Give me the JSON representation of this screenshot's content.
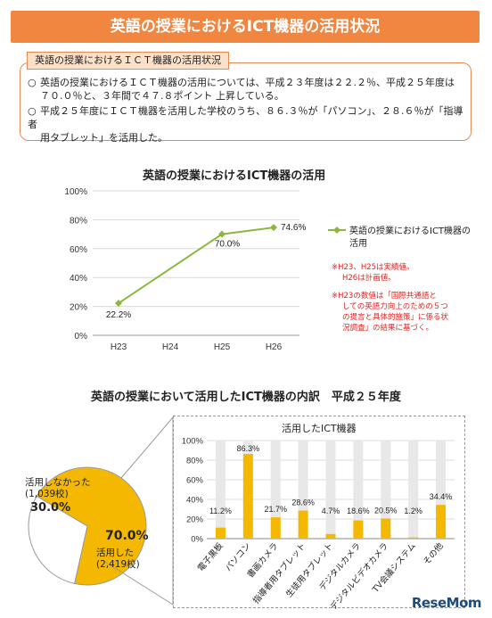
{
  "banner_title": "英語の授業におけるICT機器の活用状況",
  "summary": {
    "tab_label": "英語の授業におけるＩＣＴ機器の活用状況",
    "bullet_mark": "○",
    "lines": [
      "英語の授業におけるＩＣＴ機器の活用については、平成２３年度は２２.２％、平成２５年度は",
      "７０.０％と、３年間で４７.８ポイント 上昇している。",
      "平成２５年度にＩＣＴ機器を活用した学校のうち、８６.３％が「パソコン」、２８.６％が「指導者",
      "用タブレット」を活用した。"
    ]
  },
  "notes": {
    "n1": "※H23、H25は実績値。",
    "n2": "H26は計画値。",
    "n3_lines": [
      "※H23の数値は「国際共通語と",
      "しての英語力向上のための５つ",
      "の提言と具体的施策」に係る状",
      "況調査」の結果に基づく。"
    ]
  },
  "pie_title": "英語の授業において活用したICT機器の内訳　平成２５年度",
  "pie_labels": {
    "not_used_name": "活用しなかった",
    "not_used_count": "(1,039校)",
    "not_used_pct": "30.0%",
    "used_pct": "70.0%",
    "used_name": "活用した",
    "used_count": "(2,419校)"
  },
  "logo_text": "ReseMom",
  "chart_data": [
    {
      "type": "line",
      "title": "英語の授業におけるICT機器の活用",
      "categories": [
        "H23",
        "H24",
        "H25",
        "H26"
      ],
      "series": [
        {
          "name": "英語の授業におけるICT機器の活用",
          "values": [
            22.2,
            null,
            70.0,
            74.6
          ],
          "color": "#8ab83c"
        }
      ],
      "data_labels": [
        "22.2%",
        "",
        "70.0%",
        "74.6%"
      ],
      "yticks": [
        "0%",
        "20%",
        "40%",
        "60%",
        "80%",
        "100%"
      ],
      "ylim": [
        0,
        100
      ],
      "grid": true,
      "legend": "right"
    },
    {
      "type": "pie",
      "labels": [
        "活用した",
        "活用しなかった"
      ],
      "values": [
        70.0,
        30.0
      ],
      "colors": [
        "#f5b800",
        "#ffffff"
      ]
    },
    {
      "type": "bar",
      "title": "活用したICT機器",
      "categories": [
        "電子黒板",
        "パソコン",
        "書画カメラ",
        "指導者用タブレット",
        "生徒用タブレット",
        "デジタルカメラ",
        "デジタルビデオカメラ",
        "TV会議システム",
        "その他"
      ],
      "values": [
        11.2,
        86.3,
        21.7,
        28.6,
        4.7,
        18.6,
        20.5,
        1.2,
        34.4
      ],
      "data_labels": [
        "11.2%",
        "86.3%",
        "21.7%",
        "28.6%",
        "4.7%",
        "18.6%",
        "20.5%",
        "1.2%",
        "34.4%"
      ],
      "yticks": [
        "0%",
        "20%",
        "40%",
        "60%",
        "80%",
        "100%"
      ],
      "ylim": [
        0,
        100
      ],
      "bar_color": "#f5b800",
      "background_bar_color": "#e8e8e8",
      "grid": true
    }
  ]
}
